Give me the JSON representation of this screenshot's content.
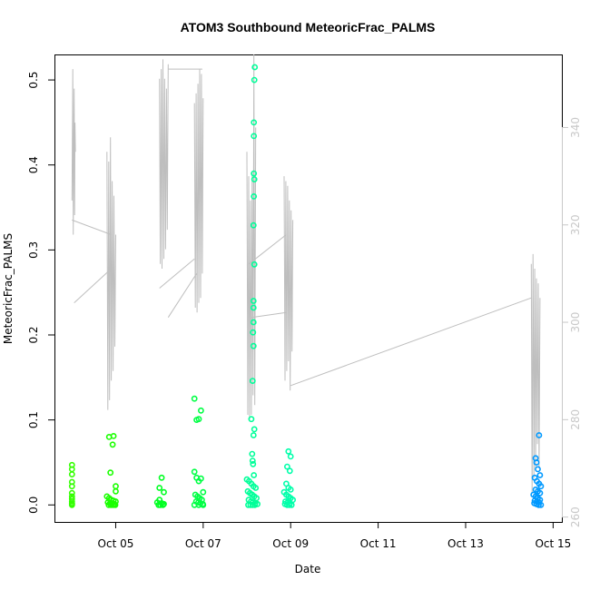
{
  "chart_data": {
    "type": "scatter",
    "title": "ATOM3 Southbound MeteoricFrac_PALMS",
    "xlabel": "Date",
    "ylabel": "MeteoricFrac_PALMS",
    "ylabel_right": "",
    "xlim": [
      3.6,
      15.2
    ],
    "ylim": [
      -0.02,
      0.53
    ],
    "ylim_right": [
      259,
      355
    ],
    "x_ticks": [
      {
        "value": 5,
        "label": "Oct 05"
      },
      {
        "value": 7,
        "label": "Oct 07"
      },
      {
        "value": 9,
        "label": "Oct 09"
      },
      {
        "value": 11,
        "label": "Oct 11"
      },
      {
        "value": 13,
        "label": "Oct 13"
      },
      {
        "value": 15,
        "label": "Oct 15"
      }
    ],
    "y_ticks": [
      0.0,
      0.1,
      0.2,
      0.3,
      0.4,
      0.5
    ],
    "y_tick_labels": [
      "0.0",
      "0.1",
      "0.2",
      "0.3",
      "0.4",
      "0.5"
    ],
    "y_right_ticks": [
      260,
      280,
      300,
      320,
      340
    ],
    "y_right_tick_labels": [
      "260",
      "280",
      "300",
      "320",
      "340"
    ],
    "grid": false,
    "colors": {
      "line": "#bebebe",
      "point_oct04": "#33ff00",
      "point_oct05": "#1aff00",
      "point_oct06": "#00ff22",
      "point_oct07": "#00ff44",
      "point_oct08": "#00ff99",
      "point_oct09": "#00ffaa",
      "point_oct14": "#0099ff"
    },
    "series": [
      {
        "kind": "points",
        "color_key": "point_oct04",
        "x": [
          4.0,
          4.0,
          4.0,
          4.0,
          4.0,
          4.0,
          4.0,
          4.0,
          4.0,
          4.0,
          4.0,
          4.0
        ],
        "y": [
          0.047,
          0.042,
          0.036,
          0.027,
          0.022,
          0.014,
          0.01,
          0.007,
          0.004,
          0.002,
          0.001,
          0.0
        ]
      },
      {
        "kind": "points",
        "color_key": "point_oct05",
        "x": [
          4.85,
          4.95,
          4.93,
          4.88,
          5.0,
          5.0,
          4.8,
          4.85,
          4.9,
          4.95,
          5.0,
          4.82,
          4.87,
          4.92,
          4.97,
          4.84,
          4.89,
          4.94,
          4.99
        ],
        "y": [
          0.08,
          0.081,
          0.071,
          0.038,
          0.022,
          0.016,
          0.01,
          0.008,
          0.006,
          0.005,
          0.004,
          0.003,
          0.002,
          0.002,
          0.001,
          0.0,
          0.0,
          0.0,
          0.0
        ]
      },
      {
        "kind": "points",
        "color_key": "point_oct06",
        "x": [
          6.05,
          6.0,
          6.1,
          6.0,
          5.95,
          6.05,
          6.1,
          5.98,
          6.02,
          6.08
        ],
        "y": [
          0.032,
          0.02,
          0.015,
          0.006,
          0.003,
          0.002,
          0.001,
          0.0,
          0.0,
          0.0
        ]
      },
      {
        "kind": "points",
        "color_key": "point_oct07",
        "x": [
          6.8,
          6.85,
          6.9,
          6.95,
          6.8,
          6.85,
          6.9,
          6.95,
          7.0,
          6.82,
          6.87,
          6.92,
          6.97,
          6.84,
          6.89,
          6.94,
          6.99,
          6.8,
          6.9,
          7.0
        ],
        "y": [
          0.125,
          0.1,
          0.101,
          0.111,
          0.039,
          0.032,
          0.028,
          0.031,
          0.015,
          0.012,
          0.01,
          0.008,
          0.006,
          0.004,
          0.003,
          0.002,
          0.001,
          0.0,
          0.0,
          0.0
        ]
      },
      {
        "kind": "points",
        "color_key": "point_oct08",
        "x": [
          8.18,
          8.17,
          8.16,
          8.16,
          8.16,
          8.17,
          8.16,
          8.15,
          8.17,
          8.15,
          8.15,
          8.15,
          8.14,
          8.15,
          8.13,
          8.1,
          8.17,
          8.15,
          8.12,
          8.13,
          8.14,
          8.16,
          8.0,
          8.05,
          8.1,
          8.15,
          8.2,
          8.02,
          8.07,
          8.12,
          8.17,
          8.22,
          8.04,
          8.09,
          8.14,
          8.19,
          8.24,
          8.03,
          8.08,
          8.13,
          8.18
        ],
        "y": [
          0.515,
          0.5,
          0.45,
          0.434,
          0.39,
          0.383,
          0.363,
          0.329,
          0.283,
          0.24,
          0.232,
          0.215,
          0.203,
          0.187,
          0.146,
          0.101,
          0.089,
          0.082,
          0.06,
          0.052,
          0.048,
          0.035,
          0.03,
          0.028,
          0.025,
          0.022,
          0.02,
          0.016,
          0.014,
          0.012,
          0.01,
          0.008,
          0.006,
          0.004,
          0.003,
          0.002,
          0.001,
          0.0,
          0.0,
          0.0,
          0.0
        ]
      },
      {
        "kind": "points",
        "color_key": "point_oct09",
        "x": [
          8.95,
          9.0,
          8.92,
          8.98,
          8.9,
          8.95,
          9.0,
          8.85,
          8.9,
          8.95,
          9.0,
          9.05,
          8.88,
          8.93,
          8.98,
          8.87,
          8.92,
          8.97,
          9.02
        ],
        "y": [
          0.063,
          0.057,
          0.045,
          0.04,
          0.025,
          0.02,
          0.018,
          0.015,
          0.012,
          0.01,
          0.008,
          0.006,
          0.004,
          0.003,
          0.002,
          0.001,
          0.0,
          0.0,
          0.0
        ]
      },
      {
        "kind": "points",
        "color_key": "point_oct14",
        "x": [
          14.68,
          14.6,
          14.62,
          14.65,
          14.7,
          14.58,
          14.63,
          14.68,
          14.72,
          14.6,
          14.65,
          14.7,
          14.55,
          14.6,
          14.65,
          14.7,
          14.58,
          14.63,
          14.68,
          14.57,
          14.62,
          14.67,
          14.72
        ],
        "y": [
          0.082,
          0.055,
          0.05,
          0.042,
          0.035,
          0.032,
          0.028,
          0.025,
          0.022,
          0.018,
          0.016,
          0.014,
          0.012,
          0.01,
          0.008,
          0.006,
          0.005,
          0.004,
          0.003,
          0.002,
          0.001,
          0.0,
          0.0
        ]
      }
    ],
    "line_series": {
      "kind": "line",
      "axis": "right",
      "color_key": "line",
      "segments": [
        {
          "x": [
            4.0,
            4.02,
            4.03,
            4.05,
            4.06,
            4.07,
            4.08
          ],
          "y": [
            325,
            352,
            318,
            348,
            322,
            341,
            335
          ]
        },
        {
          "x": [
            4.0,
            4.9
          ],
          "y": [
            321,
            318
          ]
        },
        {
          "x": [
            4.05,
            4.9
          ],
          "y": [
            304,
            311
          ]
        },
        {
          "x": [
            4.8,
            4.82,
            4.84,
            4.86,
            4.88,
            4.9,
            4.92,
            4.94,
            4.96,
            4.98,
            5.0
          ],
          "y": [
            335,
            282,
            333,
            284,
            338,
            288,
            329,
            290,
            326,
            295,
            318
          ]
        },
        {
          "x": [
            6.0,
            6.02,
            6.04,
            6.06,
            6.08,
            6.1,
            6.12,
            6.14,
            6.16,
            6.18,
            6.2
          ],
          "y": [
            350,
            312,
            352,
            311,
            354,
            313,
            350,
            315,
            348,
            319,
            353
          ]
        },
        {
          "x": [
            6.0,
            6.8
          ],
          "y": [
            307,
            313
          ]
        },
        {
          "x": [
            6.2,
            6.85
          ],
          "y": [
            301,
            310
          ]
        },
        {
          "x": [
            6.2,
            6.98
          ],
          "y": [
            352,
            352
          ]
        },
        {
          "x": [
            6.8,
            6.82,
            6.84,
            6.86,
            6.88,
            6.9,
            6.92,
            6.94,
            6.96,
            6.98,
            7.0
          ],
          "y": [
            345,
            303,
            347,
            302,
            349,
            304,
            352,
            305,
            351,
            310,
            346
          ]
        },
        {
          "x": [
            8.0,
            8.02,
            8.04,
            8.06,
            8.08,
            8.1,
            8.12,
            8.14,
            8.16,
            8.18,
            8.2
          ],
          "y": [
            335,
            281,
            330,
            280,
            325,
            281,
            331,
            285,
            355,
            283,
            340
          ]
        },
        {
          "x": [
            8.05,
            8.9
          ],
          "y": [
            312,
            318
          ]
        },
        {
          "x": [
            8.1,
            8.9
          ],
          "y": [
            301,
            302
          ]
        },
        {
          "x": [
            8.85,
            8.87,
            8.89,
            8.91,
            8.93,
            8.95,
            8.97,
            8.99,
            9.01,
            9.03,
            9.05
          ],
          "y": [
            330,
            288,
            329,
            290,
            328,
            292,
            325,
            286,
            323,
            294,
            321
          ]
        },
        {
          "x": [
            9.0,
            14.5
          ],
          "y": [
            287,
            305
          ]
        },
        {
          "x": [
            14.5,
            14.52,
            14.54,
            14.56,
            14.58,
            14.6,
            14.62,
            14.64,
            14.66,
            14.68,
            14.7
          ],
          "y": [
            312,
            265,
            314,
            268,
            311,
            270,
            309,
            275,
            308,
            270,
            305
          ]
        }
      ]
    }
  }
}
